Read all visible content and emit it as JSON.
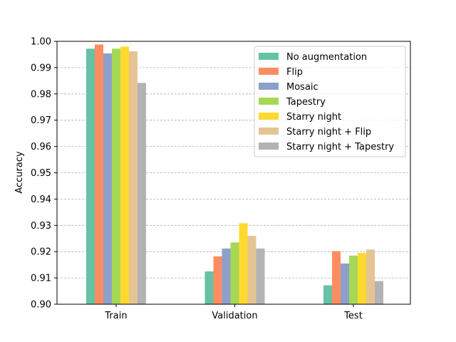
{
  "chart_data": {
    "type": "bar",
    "title": "",
    "xlabel": "",
    "ylabel": "Accuracy",
    "ylim": [
      0.9,
      1.0
    ],
    "yticks": [
      "0.90",
      "0.91",
      "0.92",
      "0.93",
      "0.94",
      "0.95",
      "0.96",
      "0.97",
      "0.98",
      "0.99",
      "1.00"
    ],
    "categories": [
      "Train",
      "Validation",
      "Test"
    ],
    "grid": "horizontal dashed",
    "legend_position": "upper right",
    "series": [
      {
        "name": "No augmentation",
        "color": "#66c2a5",
        "values": [
          0.9972,
          0.9125,
          0.9072
        ]
      },
      {
        "name": "Flip",
        "color": "#fc8d62",
        "values": [
          0.9988,
          0.9182,
          0.9202
        ]
      },
      {
        "name": "Mosaic",
        "color": "#8da0cb",
        "values": [
          0.9954,
          0.9212,
          0.9155
        ]
      },
      {
        "name": "Tapestry",
        "color": "#a6d854",
        "values": [
          0.9972,
          0.9235,
          0.9185
        ]
      },
      {
        "name": "Starry night",
        "color": "#ffd92f",
        "values": [
          0.998,
          0.9308,
          0.9195
        ]
      },
      {
        "name": "Starry night + Flip",
        "color": "#e5c494",
        "values": [
          0.9962,
          0.926,
          0.9208
        ]
      },
      {
        "name": "Starry night + Tapestry",
        "color": "#b3b3b3",
        "values": [
          0.9842,
          0.9212,
          0.9088
        ]
      }
    ]
  }
}
